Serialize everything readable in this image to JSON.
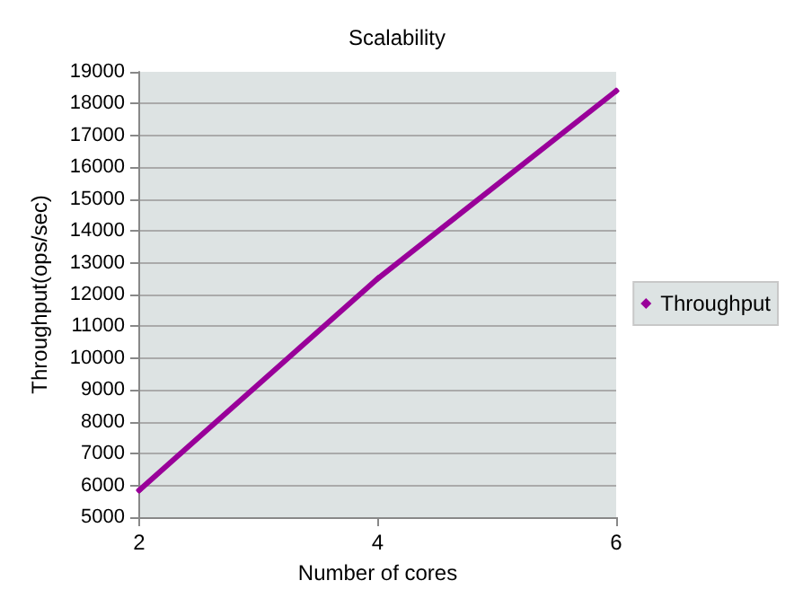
{
  "chart_data": {
    "type": "line",
    "title": "Scalability",
    "xlabel": "Number of cores",
    "ylabel": "Throughput(ops/sec)",
    "x": [
      2,
      4,
      6
    ],
    "series": [
      {
        "name": "Throughput",
        "color": "#990099",
        "values": [
          5850,
          12500,
          18400
        ]
      }
    ],
    "xlim": [
      2,
      6
    ],
    "xticks": [
      2,
      4,
      6
    ],
    "ylim": [
      5000,
      19000
    ],
    "yticks": [
      5000,
      6000,
      7000,
      8000,
      9000,
      10000,
      11000,
      12000,
      13000,
      14000,
      15000,
      16000,
      17000,
      18000,
      19000
    ],
    "grid": "y",
    "legend": "right",
    "marker": "diamond",
    "line_style": "solid"
  }
}
